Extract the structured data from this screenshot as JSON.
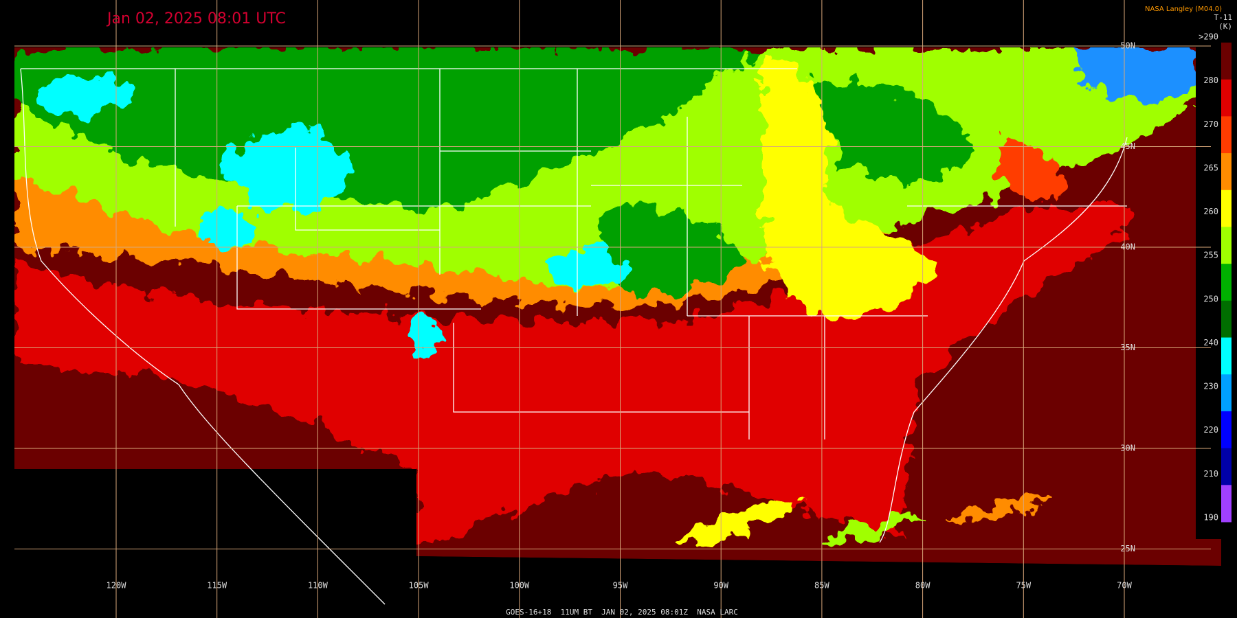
{
  "header": {
    "timestamp": "Jan 02, 2025 08:01 UTC",
    "credit": "NASA Langley (M04.0)"
  },
  "colorbar": {
    "product": "T-11",
    "unit": "(K)",
    "labels": [
      ">290",
      "280",
      "270",
      "265",
      "260",
      "255",
      "250",
      "240",
      "230",
      "220",
      "210",
      "190"
    ],
    "colors": [
      "#6b0000",
      "#e00000",
      "#ff3c00",
      "#ff8c00",
      "#ffff00",
      "#a0ff00",
      "#00b000",
      "#006e00",
      "#00ffff",
      "#00a0ff",
      "#0000ff",
      "#0000a8",
      "#a040ff"
    ]
  },
  "map": {
    "latitude_labels": [
      "50N",
      "45N",
      "40N",
      "35N",
      "30N",
      "25N"
    ],
    "longitude_labels": [
      "120W",
      "115W",
      "110W",
      "105W",
      "100W",
      "95W",
      "90W",
      "85W",
      "80W",
      "75W",
      "70W"
    ]
  },
  "footer": "GOES-16+18  11UM BT  JAN 02, 2025 08:01Z  NASA LARC"
}
